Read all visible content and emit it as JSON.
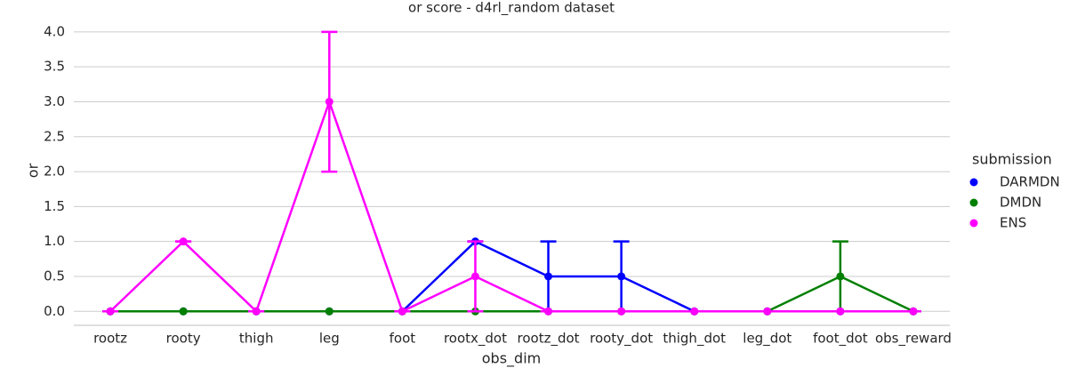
{
  "chart_data": {
    "type": "pointplot",
    "title": "or score - d4rl_random dataset",
    "x_label": "obs_dim",
    "y_label": "or",
    "categories": [
      "rootz",
      "rooty",
      "thigh",
      "leg",
      "foot",
      "rootx_dot",
      "rootz_dot",
      "rooty_dot",
      "thigh_dot",
      "leg_dot",
      "foot_dot",
      "obs_reward"
    ],
    "ylim": [
      -0.2,
      4.1
    ],
    "yticks": [
      {
        "value": 0,
        "label": "0.0"
      },
      0.5,
      {
        "value": 1,
        "label": "1.0"
      },
      1.5,
      {
        "value": 2,
        "label": "2.0"
      },
      2.5,
      {
        "value": 3,
        "label": "3.0"
      },
      3.5,
      {
        "value": 4,
        "label": "4.0"
      }
    ],
    "grid": true,
    "legend_title": "submission",
    "legend": "right",
    "series": [
      {
        "name": "DARMDN",
        "color": "#0000ff",
        "values": [
          0,
          0,
          0,
          0,
          0,
          1,
          0.5,
          0.5,
          0,
          0,
          0,
          0
        ],
        "ci_low": [
          0,
          0,
          0,
          0,
          0,
          1,
          0,
          0,
          0,
          0,
          0,
          0
        ],
        "ci_high": [
          0,
          0,
          0,
          0,
          0,
          1,
          1,
          1,
          0,
          0,
          0,
          0
        ]
      },
      {
        "name": "DMDN",
        "color": "#008000",
        "values": [
          0,
          0,
          0,
          0,
          0,
          0,
          0,
          0,
          0,
          0,
          0.5,
          0
        ],
        "ci_low": [
          0,
          0,
          0,
          0,
          0,
          0,
          0,
          0,
          0,
          0,
          0,
          0
        ],
        "ci_high": [
          0,
          0,
          0,
          0,
          0,
          0,
          0,
          0,
          0,
          0,
          1,
          0
        ]
      },
      {
        "name": "ENS",
        "color": "#ff00ff",
        "values": [
          0,
          1,
          0,
          3,
          0,
          0.5,
          0,
          0,
          0,
          0,
          0,
          0
        ],
        "ci_low": [
          0,
          1,
          0,
          2,
          0,
          0,
          0,
          0,
          0,
          0,
          0,
          0
        ],
        "ci_high": [
          0,
          1,
          0,
          4,
          0,
          1,
          0,
          0,
          0,
          0,
          0,
          0
        ]
      }
    ]
  }
}
